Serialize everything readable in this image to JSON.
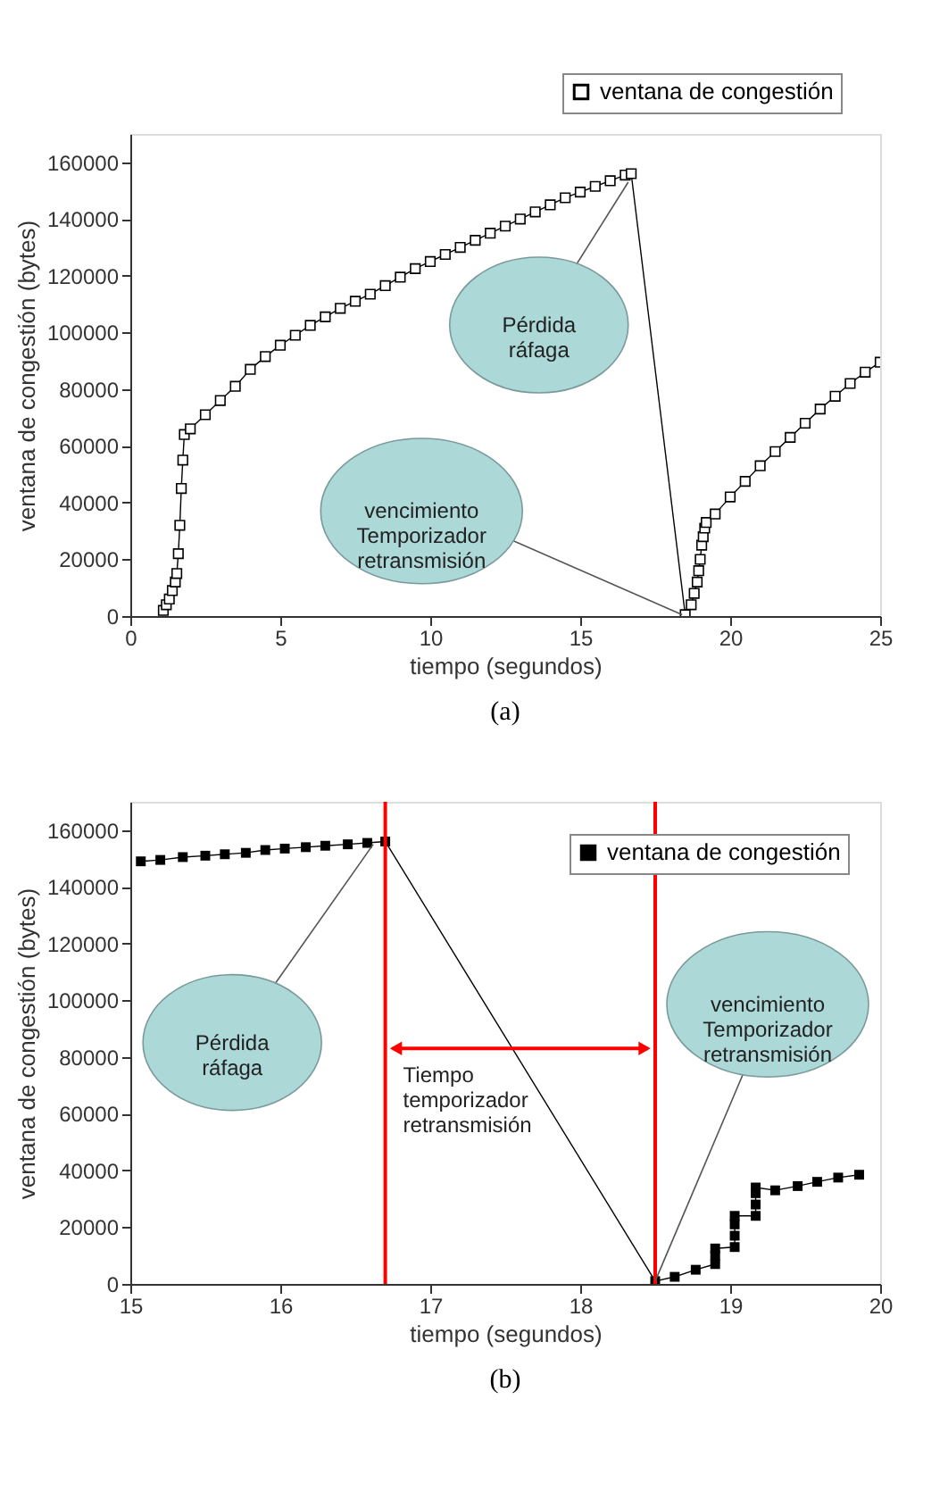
{
  "chart_data": [
    {
      "type": "line",
      "xlabel": "tiempo (segundos)",
      "ylabel": "ventana de congestión (bytes)",
      "xlim": [
        0,
        25
      ],
      "xticks": [
        0,
        5,
        10,
        15,
        20,
        25
      ],
      "ylim": [
        0,
        170000
      ],
      "yticks": [
        0,
        20000,
        40000,
        60000,
        80000,
        100000,
        120000,
        140000,
        160000
      ],
      "grid": false,
      "legend": "top right",
      "marker": "square",
      "line_style": "solid",
      "x": [
        1.1,
        1.2,
        1.3,
        1.4,
        1.5,
        1.55,
        1.6,
        1.65,
        1.7,
        1.75,
        1.8,
        2,
        2.5,
        3,
        3.5,
        4,
        4.5,
        5,
        5.5,
        6,
        6.5,
        7,
        7.5,
        8,
        8.5,
        9,
        9.5,
        10,
        10.5,
        11,
        11.5,
        12,
        12.5,
        13,
        13.5,
        14,
        14.5,
        15,
        15.5,
        16,
        16.5,
        16.7,
        18.5,
        18.7,
        18.8,
        18.9,
        18.95,
        19,
        19.05,
        19.1,
        19.15,
        19.2,
        19.5,
        20,
        20.5,
        21,
        21.5,
        22,
        22.5,
        23,
        23.5,
        24,
        24.5,
        25
      ],
      "series": [
        {
          "name": "ventana de congestión",
          "color": "#000000",
          "values": [
            2000,
            4000,
            6000,
            9000,
            12000,
            15000,
            22000,
            32000,
            45000,
            55000,
            64000,
            66000,
            71000,
            76000,
            81000,
            87000,
            91500,
            95500,
            99000,
            102500,
            105500,
            108500,
            111000,
            113500,
            116500,
            119500,
            122500,
            125000,
            127500,
            130000,
            132500,
            135000,
            137500,
            140000,
            142500,
            145000,
            147500,
            149500,
            151500,
            153500,
            155500,
            156000,
            500,
            4000,
            8000,
            12000,
            16000,
            20000,
            25000,
            28000,
            31000,
            33000,
            36000,
            42000,
            47500,
            53000,
            58000,
            63000,
            68000,
            73000,
            77500,
            82000,
            86000,
            89500
          ]
        }
      ],
      "annotations": [
        {
          "text": "Pérdida\nráfaga",
          "x": 16.6,
          "y": 153000
        },
        {
          "text": "vencimiento\nTemporizador\nretransmisión",
          "x": 18.4,
          "y": 500
        },
        "(a)"
      ]
    },
    {
      "type": "line",
      "xlabel": "tiempo (segundos)",
      "ylabel": "ventana de congestión (bytes)",
      "xlim": [
        15,
        20
      ],
      "xticks": [
        15,
        16,
        17,
        18,
        19,
        20
      ],
      "ylim": [
        0,
        170000
      ],
      "yticks": [
        0,
        20000,
        40000,
        60000,
        80000,
        100000,
        120000,
        140000,
        160000
      ],
      "grid": false,
      "legend": "top right",
      "marker": "square",
      "line_style": "solid",
      "x": [
        15.07,
        15.2,
        15.35,
        15.5,
        15.63,
        15.77,
        15.9,
        16.03,
        16.17,
        16.3,
        16.45,
        16.58,
        16.7,
        18.5,
        18.63,
        18.77,
        18.9,
        18.9,
        18.9,
        19.03,
        19.03,
        19.03,
        19.03,
        19.17,
        19.17,
        19.17,
        19.17,
        19.3,
        19.45,
        19.58,
        19.72,
        19.86
      ],
      "series": [
        {
          "name": "ventana de congestión",
          "color": "#000000",
          "values": [
            149000,
            149500,
            150500,
            151000,
            151500,
            152000,
            153000,
            153500,
            154000,
            154500,
            155000,
            155500,
            156000,
            1000,
            2500,
            5000,
            7000,
            10000,
            12500,
            13000,
            17000,
            21000,
            24000,
            24000,
            28000,
            32000,
            34000,
            33000,
            34500,
            36000,
            37500,
            38500
          ]
        }
      ],
      "ref_lines": [
        {
          "axis": "x",
          "value": 16.7,
          "color": "#ff0000"
        },
        {
          "axis": "x",
          "value": 18.5,
          "color": "#ff0000"
        }
      ],
      "annotations": [
        {
          "text": "Pérdida\nráfaga",
          "x": 16.62,
          "y": 155000
        },
        {
          "text": "vencimiento\nTemporizador\nretransmisión",
          "x": 18.5,
          "y": 1000
        },
        {
          "text": "Tiempo\ntemporizador\nretransmisión",
          "x": 17.6,
          "y": 83000
        },
        "(b)"
      ]
    }
  ]
}
